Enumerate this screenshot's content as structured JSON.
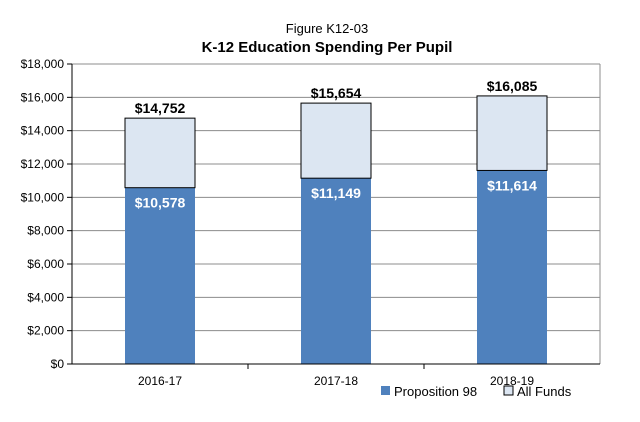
{
  "chart_data": {
    "type": "bar",
    "stacked": true,
    "title": "Figure K12-03",
    "subtitle": "K-12 Education Spending Per Pupil",
    "categories": [
      "2016-17",
      "2017-18",
      "2018-19"
    ],
    "series": [
      {
        "name": "Proposition 98",
        "values": [
          10578,
          11149,
          11614
        ],
        "labels": [
          "$10,578",
          "$11,149",
          "$11,614"
        ],
        "color": "#4f81bd"
      },
      {
        "name": "All Funds",
        "values": [
          4174,
          4505,
          4471
        ],
        "color": "#dce6f2"
      }
    ],
    "totals": [
      14752,
      15654,
      16085
    ],
    "total_labels": [
      "$14,752",
      "$15,654",
      "$16,085"
    ],
    "ylim": [
      0,
      18000
    ],
    "yticks": [
      0,
      2000,
      4000,
      6000,
      8000,
      10000,
      12000,
      14000,
      16000,
      18000
    ],
    "ytick_labels": [
      "$0",
      "$2,000",
      "$4,000",
      "$6,000",
      "$8,000",
      "$10,000",
      "$12,000",
      "$14,000",
      "$16,000",
      "$18,000"
    ],
    "xlabel": "",
    "ylabel": "",
    "grid": true,
    "legend_position": "bottom-right"
  }
}
